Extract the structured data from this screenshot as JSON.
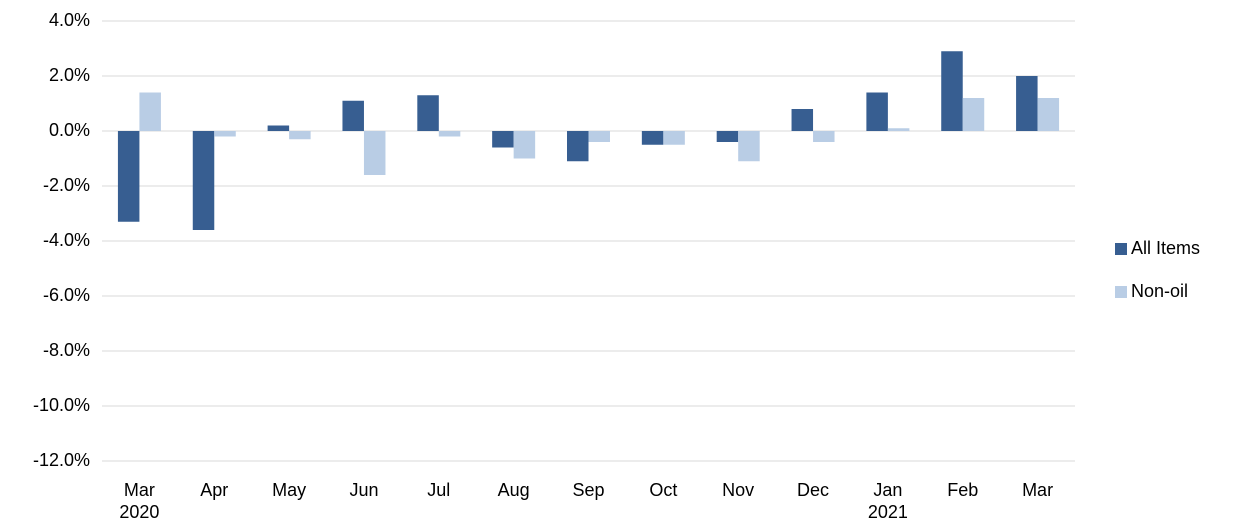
{
  "chart_data": {
    "type": "bar",
    "categories": [
      "Mar\n2020",
      "Apr",
      "May",
      "Jun",
      "Jul",
      "Aug",
      "Sep",
      "Oct",
      "Nov",
      "Dec",
      "Jan\n2021",
      "Feb",
      "Mar"
    ],
    "series": [
      {
        "name": "All Items",
        "color": "#375e91",
        "values": [
          -3.3,
          -3.6,
          0.2,
          1.1,
          1.3,
          -0.6,
          -1.1,
          -0.5,
          -0.4,
          0.8,
          1.4,
          2.9,
          2.0
        ]
      },
      {
        "name": "Non-oil",
        "color": "#b9cde5",
        "values": [
          1.4,
          -0.2,
          -0.3,
          -1.6,
          -0.2,
          -1.0,
          -0.4,
          -0.5,
          -1.1,
          -0.4,
          0.1,
          1.2,
          1.2
        ]
      }
    ],
    "ylim": [
      -12,
      4
    ],
    "yticks": [
      {
        "value": -12,
        "label": "-12.0%"
      },
      {
        "value": -10,
        "label": "-10.0%"
      },
      {
        "value": -8,
        "label": "-8.0%"
      },
      {
        "value": -6,
        "label": "-6.0%"
      },
      {
        "value": -4,
        "label": "-4.0%"
      },
      {
        "value": -2,
        "label": "-2.0%"
      },
      {
        "value": 0,
        "label": "0.0%"
      },
      {
        "value": 2,
        "label": "2.0%"
      },
      {
        "value": 4,
        "label": "4.0%"
      }
    ],
    "grid": true,
    "legend": "right"
  }
}
